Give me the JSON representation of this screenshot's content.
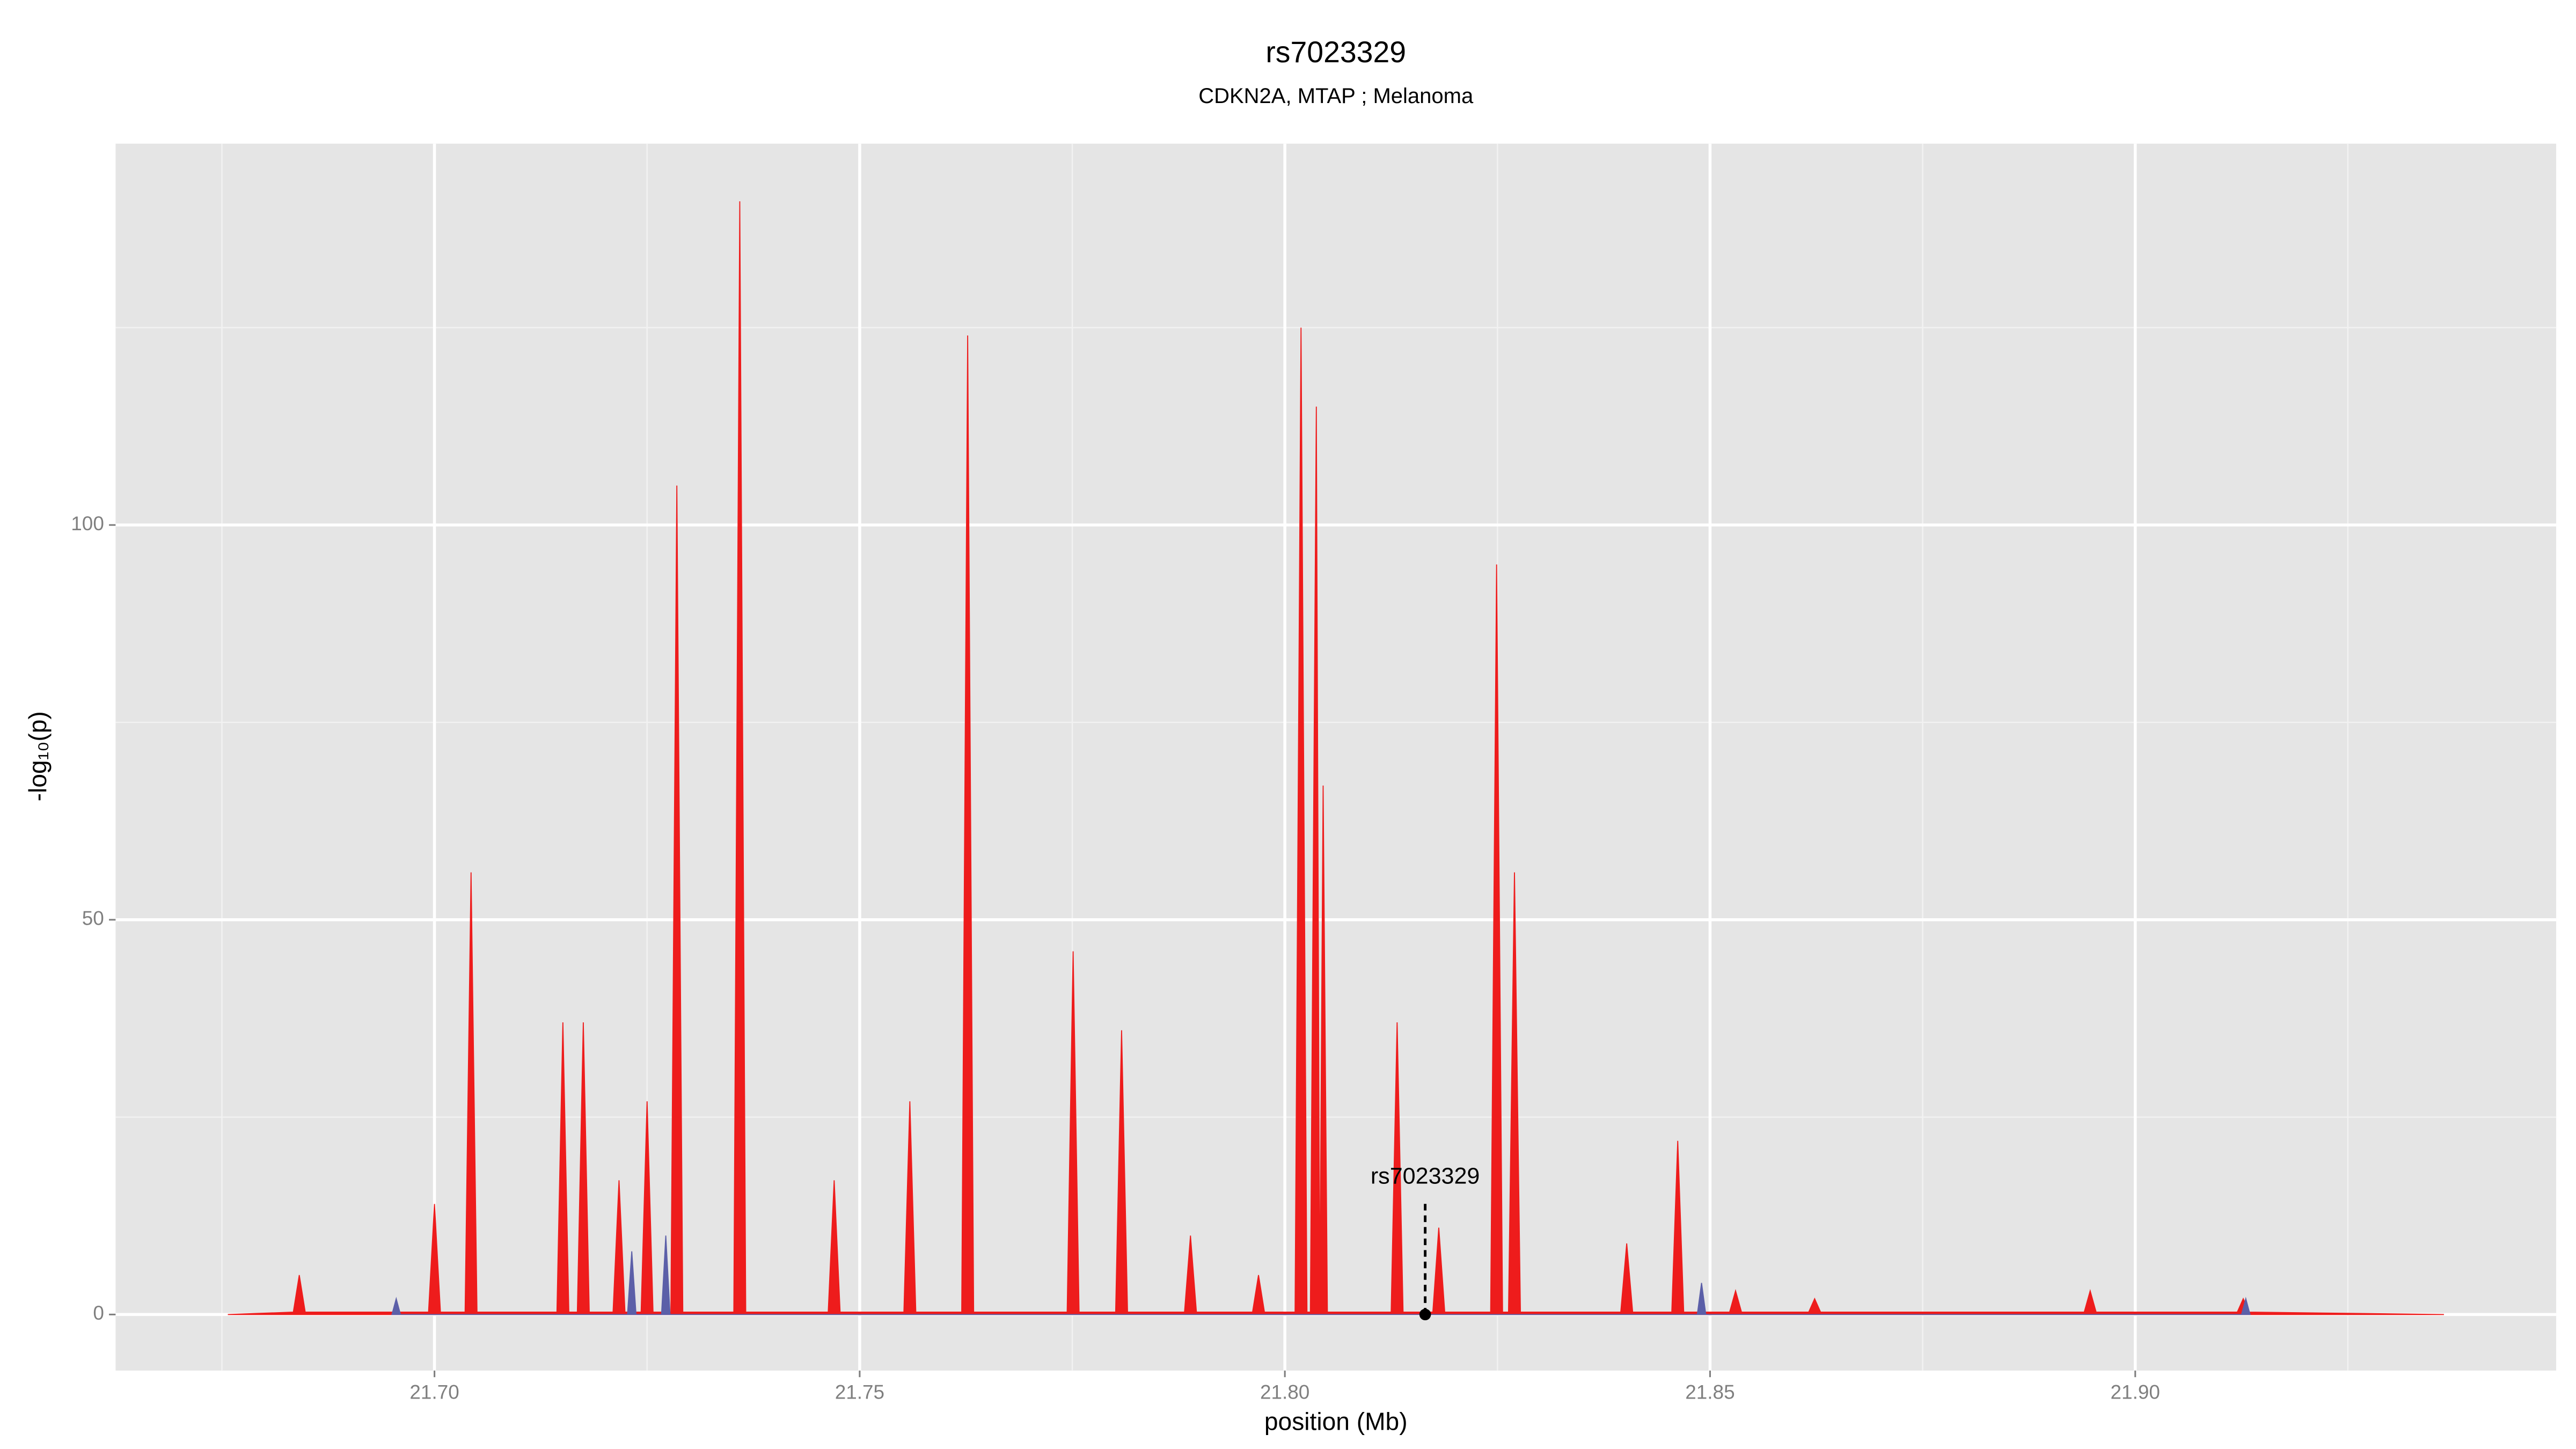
{
  "chart_data": {
    "type": "area",
    "title": "rs7023329",
    "subtitle": "CDKN2A, MTAP ; Melanoma",
    "xlabel": "position (Mb)",
    "ylabel": "-log₁₀(p)",
    "xlim": [
      21.6625,
      21.9495
    ],
    "ylim": [
      -7.1,
      148.3
    ],
    "xticks": [
      {
        "value": 21.7,
        "label": "21.70"
      },
      {
        "value": 21.75,
        "label": "21.75"
      },
      {
        "value": 21.8,
        "label": "21.80"
      },
      {
        "value": 21.85,
        "label": "21.85"
      },
      {
        "value": 21.9,
        "label": "21.90"
      }
    ],
    "yticks": [
      0,
      50,
      100
    ],
    "minor_xticks": [
      21.675,
      21.725,
      21.775,
      21.825,
      21.875,
      21.925
    ],
    "minor_yticks": [
      25,
      75,
      125
    ],
    "grid": true,
    "background": "#e5e5e5",
    "series": [
      {
        "color": "#ee1c1c",
        "x": [
          21.6757,
          21.6834,
          21.6841,
          21.6848,
          21.6993,
          21.7,
          21.7007,
          21.7036,
          21.7043,
          21.705,
          21.7144,
          21.7151,
          21.7158,
          21.7168,
          21.7175,
          21.7182,
          21.721,
          21.7217,
          21.7224,
          21.7243,
          21.725,
          21.7257,
          21.7278,
          21.7285,
          21.7292,
          21.7352,
          21.7359,
          21.7366,
          21.7463,
          21.747,
          21.7477,
          21.7552,
          21.7559,
          21.7566,
          21.762,
          21.7627,
          21.7634,
          21.7744,
          21.7751,
          21.7758,
          21.7801,
          21.7808,
          21.7815,
          21.7882,
          21.7889,
          21.7896,
          21.7962,
          21.7969,
          21.7976,
          21.8012,
          21.8019,
          21.8026,
          21.803,
          21.8037,
          21.8041,
          21.8045,
          21.805,
          21.8125,
          21.8132,
          21.8139,
          21.8174,
          21.8181,
          21.8188,
          21.8242,
          21.8249,
          21.8256,
          21.8263,
          21.827,
          21.8277,
          21.8395,
          21.8402,
          21.8409,
          21.8455,
          21.8462,
          21.8469,
          21.8523,
          21.853,
          21.8537,
          21.8616,
          21.8623,
          21.863,
          21.894,
          21.8947,
          21.8954,
          21.912,
          21.9127,
          21.9134,
          21.9363
        ],
        "values": [
          0,
          0.3,
          5,
          0.3,
          0.3,
          14,
          0.3,
          0.3,
          56,
          0.3,
          0.3,
          37,
          0.3,
          0.3,
          37,
          0.3,
          0.3,
          17,
          0.3,
          0.3,
          27,
          0.3,
          0.3,
          105,
          0.3,
          0.3,
          141,
          0.3,
          0.3,
          17,
          0.3,
          0.3,
          27,
          0.3,
          0.3,
          124,
          0.3,
          0.3,
          46,
          0.3,
          0.3,
          36,
          0.3,
          0.3,
          10,
          0.3,
          0.3,
          5,
          0.3,
          0.3,
          125,
          0.3,
          0.3,
          115,
          0.3,
          67,
          0.3,
          0.3,
          37,
          0.3,
          0.3,
          11,
          0.3,
          0.3,
          95,
          0.3,
          0.3,
          56,
          0.3,
          0.3,
          9,
          0.3,
          0.3,
          22,
          0.3,
          0.3,
          3,
          0.3,
          0.3,
          2,
          0.3,
          0.3,
          3,
          0.3,
          0.3,
          2,
          0.3,
          0
        ]
      },
      {
        "color": "#5b5fa8",
        "x": [
          21.695,
          21.6955,
          21.696,
          21.7227,
          21.7232,
          21.7237,
          21.7267,
          21.7272,
          21.7277,
          21.8485,
          21.849,
          21.8495,
          21.9125,
          21.913,
          21.9135
        ],
        "values": [
          0,
          2,
          0,
          0,
          8,
          0,
          0,
          10,
          0,
          0,
          4,
          0,
          0,
          2,
          0
        ]
      }
    ],
    "annotation": {
      "text": "rs7023329",
      "x": 21.8165,
      "y": 0
    }
  }
}
